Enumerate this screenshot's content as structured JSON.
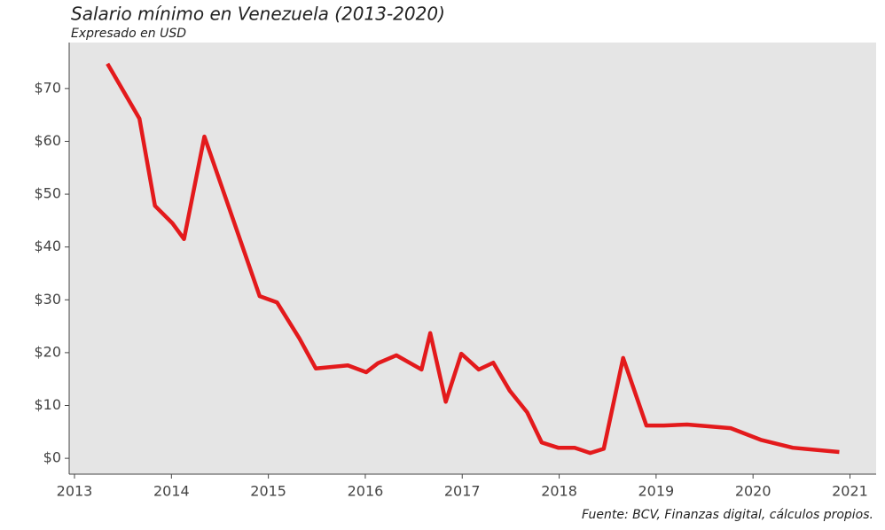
{
  "chart_data": {
    "type": "line",
    "title": "Salario mínimo en Venezuela (2013-2020)",
    "subtitle": "Expresado en USD",
    "caption": "Fuente: BCV, Finanzas digital, cálculos propios.",
    "x": [
      2013.34,
      2013.67,
      2013.83,
      2014.01,
      2014.13,
      2014.34,
      2014.91,
      2015.09,
      2015.32,
      2015.49,
      2015.82,
      2016.01,
      2016.13,
      2016.32,
      2016.58,
      2016.67,
      2016.83,
      2016.99,
      2017.17,
      2017.32,
      2017.49,
      2017.67,
      2017.82,
      2017.99,
      2018.16,
      2018.32,
      2018.46,
      2018.66,
      2018.9,
      2019.08,
      2019.32,
      2019.77,
      2020.08,
      2020.41,
      2020.89
    ],
    "series": [
      {
        "name": "Salario mínimo",
        "color": "#e31a1c",
        "values": [
          74.7,
          64.3,
          47.8,
          44.5,
          41.5,
          60.9,
          30.7,
          29.5,
          22.7,
          17.0,
          17.6,
          16.3,
          18.0,
          19.5,
          16.8,
          23.7,
          10.7,
          19.8,
          16.8,
          18.1,
          12.8,
          8.7,
          3.0,
          2.0,
          2.0,
          1.0,
          1.8,
          19.0,
          6.2,
          6.2,
          6.4,
          5.7,
          3.5,
          2.0,
          1.2
        ]
      }
    ],
    "xlim": [
      2012.945,
      2021.27
    ],
    "xticks": [
      2013,
      2014,
      2015,
      2016,
      2017,
      2018,
      2019,
      2020,
      2021
    ],
    "ylim": [
      -3.0,
      78.7
    ],
    "yticks": [
      {
        "value": 0,
        "label": "$0"
      },
      {
        "value": 10,
        "label": "$10"
      },
      {
        "value": 20,
        "label": "$20"
      },
      {
        "value": 30,
        "label": "$30"
      },
      {
        "value": 40,
        "label": "$40"
      },
      {
        "value": 50,
        "label": "$50"
      },
      {
        "value": 60,
        "label": "$60"
      },
      {
        "value": 70,
        "label": "$70"
      }
    ],
    "background": "#e5e5e5"
  }
}
